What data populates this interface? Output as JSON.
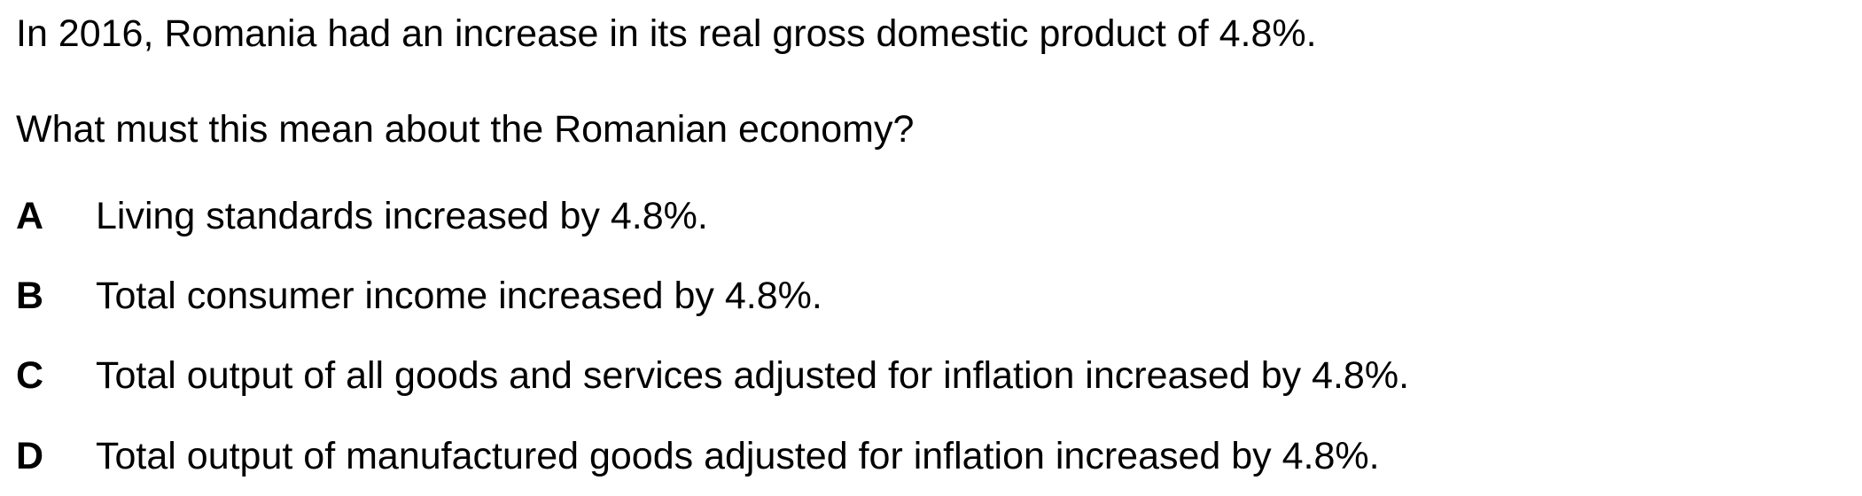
{
  "question": {
    "context": "In 2016, Romania had an increase in its real gross domestic product of 4.8%.",
    "prompt": "What must this mean about the Romanian economy?",
    "options": [
      {
        "letter": "A",
        "text": "Living standards increased by 4.8%."
      },
      {
        "letter": "B",
        "text": "Total consumer income increased by 4.8%."
      },
      {
        "letter": "C",
        "text": "Total output of all goods and services adjusted for inflation increased by 4.8%."
      },
      {
        "letter": "D",
        "text": "Total output of manufactured goods adjusted for inflation increased by 4.8%."
      }
    ]
  }
}
